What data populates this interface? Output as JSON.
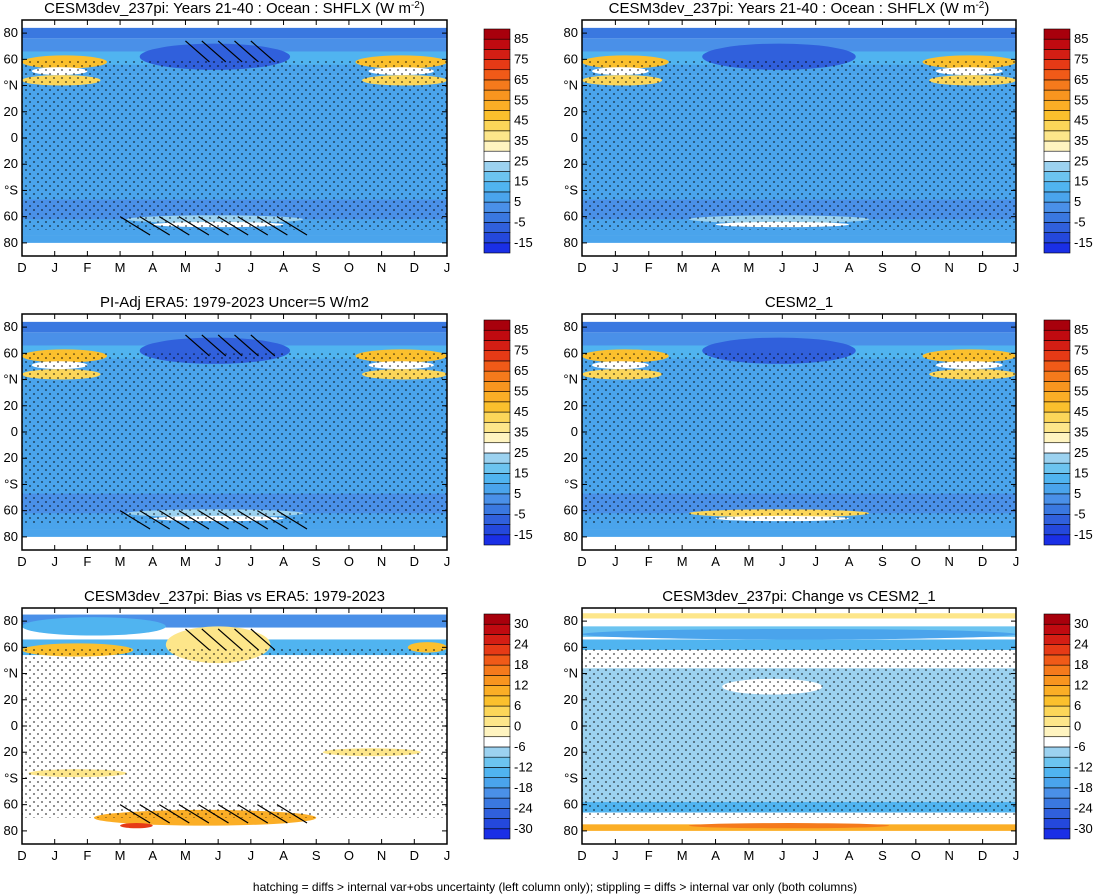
{
  "footer": "hatching = diffs > internal var+obs uncertainty (left column only); stippling = diffs > internal var only (both columns)",
  "chart_data": [
    {
      "type": "heatmap",
      "title": "CESM3dev_237pi: Years 21-40 : Ocean : SHFLX (W m",
      "title_superscript": "-2",
      "title_tail": ")",
      "xtick_labels": [
        "D",
        "J",
        "F",
        "M",
        "A",
        "M",
        "J",
        "J",
        "A",
        "S",
        "O",
        "N",
        "D",
        "J"
      ],
      "ytick_labels": [
        "80",
        "60",
        "°N",
        "20",
        "0",
        "20",
        "°S",
        "60",
        "80"
      ],
      "colorbar_labels": [
        "85",
        "75",
        "65",
        "55",
        "45",
        "35",
        "25",
        "15",
        "5",
        "-5",
        "-15"
      ],
      "colorbar_levels": [
        -20,
        -15,
        -10,
        -5,
        0,
        5,
        10,
        15,
        20,
        25,
        30,
        35,
        40,
        45,
        50,
        55,
        60,
        65,
        70,
        75,
        80,
        85,
        90
      ],
      "hatching": true,
      "stippling": true
    },
    {
      "type": "heatmap",
      "title": "CESM3dev_237pi: Years 21-40 : Ocean : SHFLX (W m",
      "title_superscript": "-2",
      "title_tail": ")",
      "xtick_labels": [
        "D",
        "J",
        "F",
        "M",
        "A",
        "M",
        "J",
        "J",
        "A",
        "S",
        "O",
        "N",
        "D",
        "J"
      ],
      "ytick_labels": [
        "80",
        "60",
        "°N",
        "20",
        "0",
        "20",
        "°S",
        "60",
        "80"
      ],
      "colorbar_labels": [
        "85",
        "75",
        "65",
        "55",
        "45",
        "35",
        "25",
        "15",
        "5",
        "-5",
        "-15"
      ],
      "colorbar_levels": [
        -20,
        -15,
        -10,
        -5,
        0,
        5,
        10,
        15,
        20,
        25,
        30,
        35,
        40,
        45,
        50,
        55,
        60,
        65,
        70,
        75,
        80,
        85,
        90
      ],
      "hatching": false,
      "stippling": true
    },
    {
      "type": "heatmap",
      "title": "PI-Adj ERA5: 1979-2023 Uncer=5 W/m2",
      "xtick_labels": [
        "D",
        "J",
        "F",
        "M",
        "A",
        "M",
        "J",
        "J",
        "A",
        "S",
        "O",
        "N",
        "D",
        "J"
      ],
      "ytick_labels": [
        "80",
        "60",
        "°N",
        "20",
        "0",
        "20",
        "°S",
        "60",
        "80"
      ],
      "colorbar_labels": [
        "85",
        "75",
        "65",
        "55",
        "45",
        "35",
        "25",
        "15",
        "5",
        "-5",
        "-15"
      ],
      "colorbar_levels": [
        -20,
        -15,
        -10,
        -5,
        0,
        5,
        10,
        15,
        20,
        25,
        30,
        35,
        40,
        45,
        50,
        55,
        60,
        65,
        70,
        75,
        80,
        85,
        90
      ],
      "hatching": true,
      "stippling": true
    },
    {
      "type": "heatmap",
      "title": "CESM2_1",
      "xtick_labels": [
        "D",
        "J",
        "F",
        "M",
        "A",
        "M",
        "J",
        "J",
        "A",
        "S",
        "O",
        "N",
        "D",
        "J"
      ],
      "ytick_labels": [
        "80",
        "60",
        "°N",
        "20",
        "0",
        "20",
        "°S",
        "60",
        "80"
      ],
      "colorbar_labels": [
        "85",
        "75",
        "65",
        "55",
        "45",
        "35",
        "25",
        "15",
        "5",
        "-5",
        "-15"
      ],
      "colorbar_levels": [
        -20,
        -15,
        -10,
        -5,
        0,
        5,
        10,
        15,
        20,
        25,
        30,
        35,
        40,
        45,
        50,
        55,
        60,
        65,
        70,
        75,
        80,
        85,
        90
      ],
      "hatching": false,
      "stippling": true
    },
    {
      "type": "heatmap",
      "title": "CESM3dev_237pi: Bias vs ERA5: 1979-2023",
      "xtick_labels": [
        "D",
        "J",
        "F",
        "M",
        "A",
        "M",
        "J",
        "J",
        "A",
        "S",
        "O",
        "N",
        "D",
        "J"
      ],
      "ytick_labels": [
        "80",
        "60",
        "°N",
        "20",
        "0",
        "20",
        "°S",
        "60",
        "80"
      ],
      "colorbar_labels": [
        "30",
        "24",
        "18",
        "12",
        "6",
        "0",
        "-6",
        "-12",
        "-18",
        "-24",
        "-30"
      ],
      "colorbar_levels": [
        -33,
        -30,
        -27,
        -24,
        -21,
        -18,
        -15,
        -12,
        -9,
        -6,
        -3,
        0,
        3,
        6,
        9,
        12,
        15,
        18,
        21,
        24,
        27,
        30,
        33
      ],
      "hatching": true,
      "stippling": true
    },
    {
      "type": "heatmap",
      "title": "CESM3dev_237pi: Change vs CESM2_1",
      "xtick_labels": [
        "D",
        "J",
        "F",
        "M",
        "A",
        "M",
        "J",
        "J",
        "A",
        "S",
        "O",
        "N",
        "D",
        "J"
      ],
      "ytick_labels": [
        "80",
        "60",
        "°N",
        "20",
        "0",
        "20",
        "°S",
        "60",
        "80"
      ],
      "colorbar_labels": [
        "30",
        "24",
        "18",
        "12",
        "6",
        "0",
        "-6",
        "-12",
        "-18",
        "-24",
        "-30"
      ],
      "colorbar_levels": [
        -33,
        -30,
        -27,
        -24,
        -21,
        -18,
        -15,
        -12,
        -9,
        -6,
        -3,
        0,
        3,
        6,
        9,
        12,
        15,
        18,
        21,
        24,
        27,
        30,
        33
      ],
      "hatching": false,
      "stippling": true
    }
  ],
  "colors": {
    "palette": [
      "#1a2fe6",
      "#2448dc",
      "#3060dc",
      "#3a78e0",
      "#4a90e8",
      "#4aa4ec",
      "#50b4f0",
      "#6cc4f0",
      "#9cd2f0",
      "#ffffff",
      "#fff4c0",
      "#fde68a",
      "#fcd659",
      "#fbc02d",
      "#fbae26",
      "#f8951f",
      "#f57a1c",
      "#f05a18",
      "#e63a16",
      "#d41e14",
      "#c00a10",
      "#a8000c"
    ],
    "hatch": "#000000",
    "stipple": "#000000"
  }
}
